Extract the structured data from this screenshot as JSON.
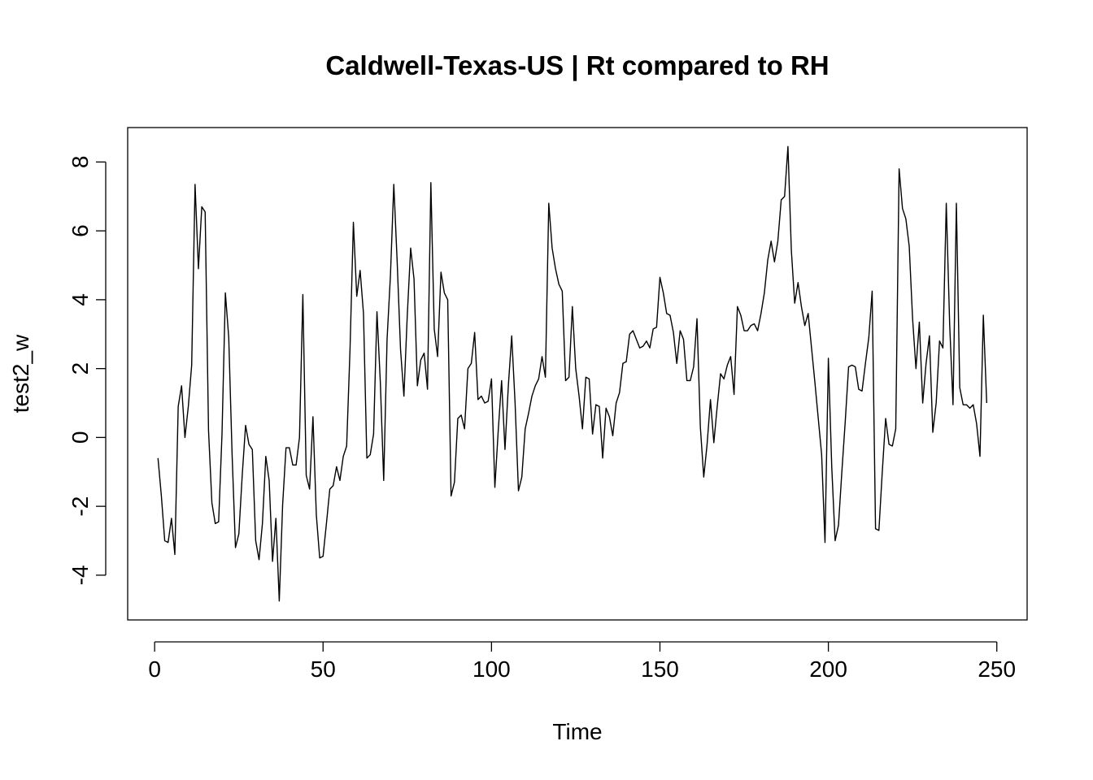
{
  "chart_data": {
    "type": "line",
    "title": "Caldwell-Texas-US | Rt compared to RH",
    "xlabel": "Time",
    "ylabel": "test2_w",
    "xlim": [
      -8,
      259
    ],
    "ylim": [
      -5.3,
      9.0
    ],
    "xticks": [
      0,
      50,
      100,
      150,
      200,
      250
    ],
    "yticks": [
      -4,
      -2,
      0,
      2,
      4,
      6,
      8
    ],
    "grid": false,
    "legend": "none",
    "line_color": "#000000",
    "series": [
      {
        "x_start": 1,
        "x_step": 1,
        "values": [
          -0.6,
          -1.7,
          -3.0,
          -3.05,
          -2.35,
          -3.4,
          0.9,
          1.5,
          0.0,
          0.9,
          2.1,
          7.35,
          4.9,
          6.7,
          6.55,
          0.2,
          -1.9,
          -2.5,
          -2.45,
          0.1,
          4.2,
          2.9,
          -0.5,
          -3.2,
          -2.8,
          -1.1,
          0.35,
          -0.2,
          -0.35,
          -3.0,
          -3.55,
          -2.5,
          -0.55,
          -1.25,
          -3.6,
          -2.35,
          -4.75,
          -1.95,
          -0.3,
          -0.3,
          -0.8,
          -0.8,
          0.0,
          4.15,
          -1.1,
          -1.5,
          0.6,
          -2.25,
          -3.5,
          -3.45,
          -2.5,
          -1.5,
          -1.4,
          -0.85,
          -1.25,
          -0.55,
          -0.25,
          2.55,
          6.25,
          4.1,
          4.85,
          3.6,
          -0.6,
          -0.5,
          0.1,
          3.65,
          1.6,
          -1.25,
          2.85,
          4.7,
          7.35,
          5.1,
          2.55,
          1.2,
          3.55,
          5.5,
          4.6,
          1.5,
          2.25,
          2.45,
          1.4,
          7.4,
          3.15,
          2.35,
          4.8,
          4.2,
          4.0,
          -1.7,
          -1.3,
          0.55,
          0.65,
          0.25,
          2.0,
          2.15,
          3.05,
          1.1,
          1.2,
          1.0,
          1.05,
          1.7,
          -1.45,
          0.2,
          1.65,
          -0.35,
          1.5,
          2.95,
          1.0,
          -1.55,
          -1.15,
          0.25,
          0.7,
          1.2,
          1.5,
          1.7,
          2.35,
          1.75,
          6.8,
          5.5,
          4.9,
          4.45,
          4.25,
          1.65,
          1.75,
          3.8,
          2.0,
          1.2,
          0.25,
          1.75,
          1.7,
          0.1,
          0.95,
          0.9,
          -0.6,
          0.85,
          0.6,
          0.05,
          1.0,
          1.3,
          2.15,
          2.2,
          3.0,
          3.1,
          2.85,
          2.6,
          2.65,
          2.8,
          2.6,
          3.15,
          3.2,
          4.65,
          4.2,
          3.6,
          3.55,
          3.05,
          2.15,
          3.1,
          2.85,
          1.65,
          1.65,
          2.05,
          3.45,
          0.3,
          -1.15,
          -0.2,
          1.1,
          -0.15,
          0.9,
          1.85,
          1.7,
          2.1,
          2.35,
          1.25,
          3.8,
          3.55,
          3.1,
          3.1,
          3.25,
          3.3,
          3.1,
          3.6,
          4.2,
          5.15,
          5.7,
          5.1,
          5.7,
          6.9,
          7.0,
          8.45,
          5.45,
          3.9,
          4.5,
          3.8,
          3.25,
          3.6,
          2.6,
          1.6,
          0.55,
          -0.5,
          -3.05,
          2.3,
          -0.85,
          -3.0,
          -2.55,
          -1.0,
          0.45,
          2.05,
          2.1,
          2.05,
          1.4,
          1.35,
          2.15,
          2.9,
          4.25,
          -2.65,
          -2.7,
          -1.0,
          0.55,
          -0.2,
          -0.25,
          0.25,
          7.8,
          6.65,
          6.35,
          5.55,
          3.45,
          2.0,
          3.35,
          1.0,
          2.15,
          2.95,
          0.15,
          1.0,
          2.8,
          2.6,
          6.8,
          3.3,
          0.95,
          6.8,
          1.45,
          0.95,
          0.95,
          0.85,
          0.95,
          0.4,
          -0.55,
          3.55,
          1.0
        ]
      }
    ]
  }
}
